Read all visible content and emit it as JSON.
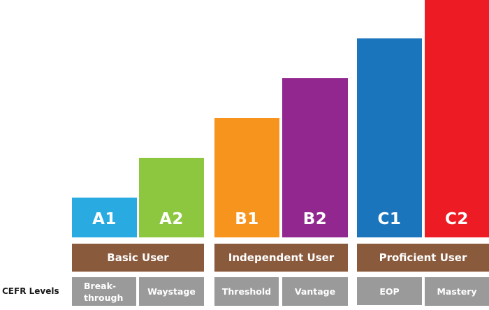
{
  "row_label": "CEFR Levels",
  "groups": [
    {
      "label": "Basic User"
    },
    {
      "label": "Independent User"
    },
    {
      "label": "Proficient User"
    }
  ],
  "levels": [
    {
      "code": "A1",
      "color": "#29abe2",
      "level": 1,
      "sublabel_line1": "Break-",
      "sublabel_line2": "through"
    },
    {
      "code": "A2",
      "color": "#8dc63f",
      "level": 2,
      "sublabel_line1": "Waystage",
      "sublabel_line2": ""
    },
    {
      "code": "B1",
      "color": "#f7941e",
      "level": 3,
      "sublabel_line1": "Threshold",
      "sublabel_line2": ""
    },
    {
      "code": "B2",
      "color": "#92278f",
      "level": 4,
      "sublabel_line1": "Vantage",
      "sublabel_line2": ""
    },
    {
      "code": "C1",
      "color": "#1b75bc",
      "level": 5,
      "sublabel_line1": "EOP",
      "sublabel_line2": ""
    },
    {
      "code": "C2",
      "color": "#ed1c24",
      "level": 6,
      "sublabel_line1": "Mastery",
      "sublabel_line2": ""
    }
  ],
  "colors": {
    "group_bg": "#8a5a3c",
    "sublabel_bg": "#9a9a9a",
    "text_on_color": "#ffffff"
  }
}
